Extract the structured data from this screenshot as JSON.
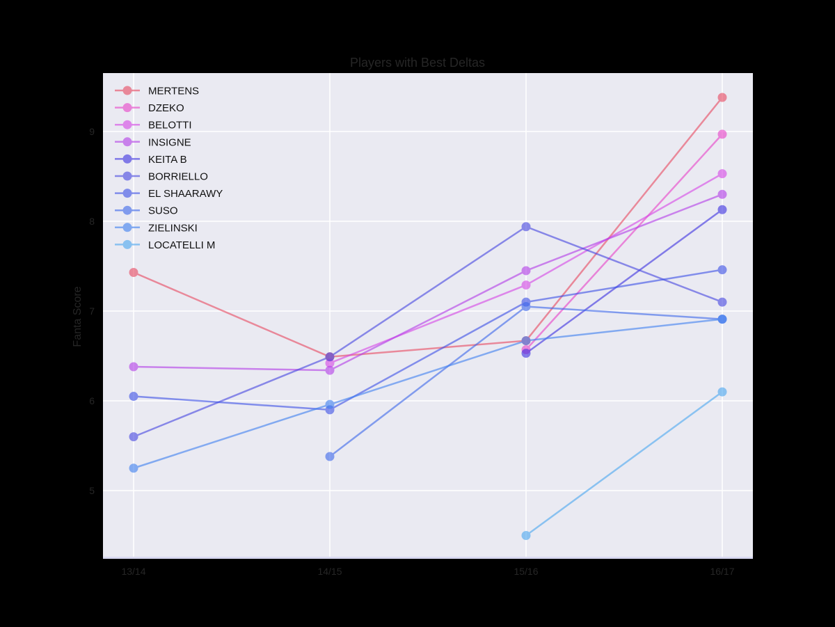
{
  "chart_data": {
    "type": "line",
    "title": "Players with Best Deltas",
    "xlabel": "",
    "ylabel": "Fanta Score",
    "categories": [
      "13/14",
      "14/15",
      "15/16",
      "16/17"
    ],
    "yticks": [
      5,
      6,
      7,
      8,
      9
    ],
    "ylim": [
      4.25,
      9.65
    ],
    "grid": true,
    "legend_position": "upper left",
    "series": [
      {
        "name": "MERTENS",
        "color": "#e8475f",
        "values": [
          7.43,
          6.49,
          6.67,
          9.38
        ]
      },
      {
        "name": "DZEKO",
        "color": "#e83fc8",
        "values": [
          null,
          null,
          6.57,
          8.97
        ]
      },
      {
        "name": "BELOTTI",
        "color": "#d545e6",
        "values": [
          null,
          6.42,
          7.29,
          8.53
        ]
      },
      {
        "name": "INSIGNE",
        "color": "#b23be8",
        "values": [
          6.38,
          6.34,
          7.45,
          8.3
        ]
      },
      {
        "name": "KEITA B",
        "color": "#3b2fe0",
        "values": [
          null,
          null,
          6.53,
          8.13
        ]
      },
      {
        "name": "BORRIELLO",
        "color": "#4545e0",
        "values": [
          5.6,
          6.49,
          7.94,
          7.1
        ]
      },
      {
        "name": "EL SHAARAWY",
        "color": "#3a4ee6",
        "values": [
          6.05,
          5.9,
          7.1,
          7.46
        ]
      },
      {
        "name": "SUSO",
        "color": "#3b66ea",
        "values": [
          null,
          5.38,
          7.05,
          6.91
        ]
      },
      {
        "name": "ZIELINSKI",
        "color": "#3d7ef0",
        "values": [
          5.25,
          5.96,
          6.67,
          6.91
        ]
      },
      {
        "name": "LOCATELLI M",
        "color": "#4aa6f0",
        "values": [
          null,
          null,
          4.5,
          6.1
        ]
      }
    ]
  },
  "colors": {
    "plot_background": "#eaeaf2",
    "grid": "#ffffff",
    "page_background": "#000000"
  }
}
